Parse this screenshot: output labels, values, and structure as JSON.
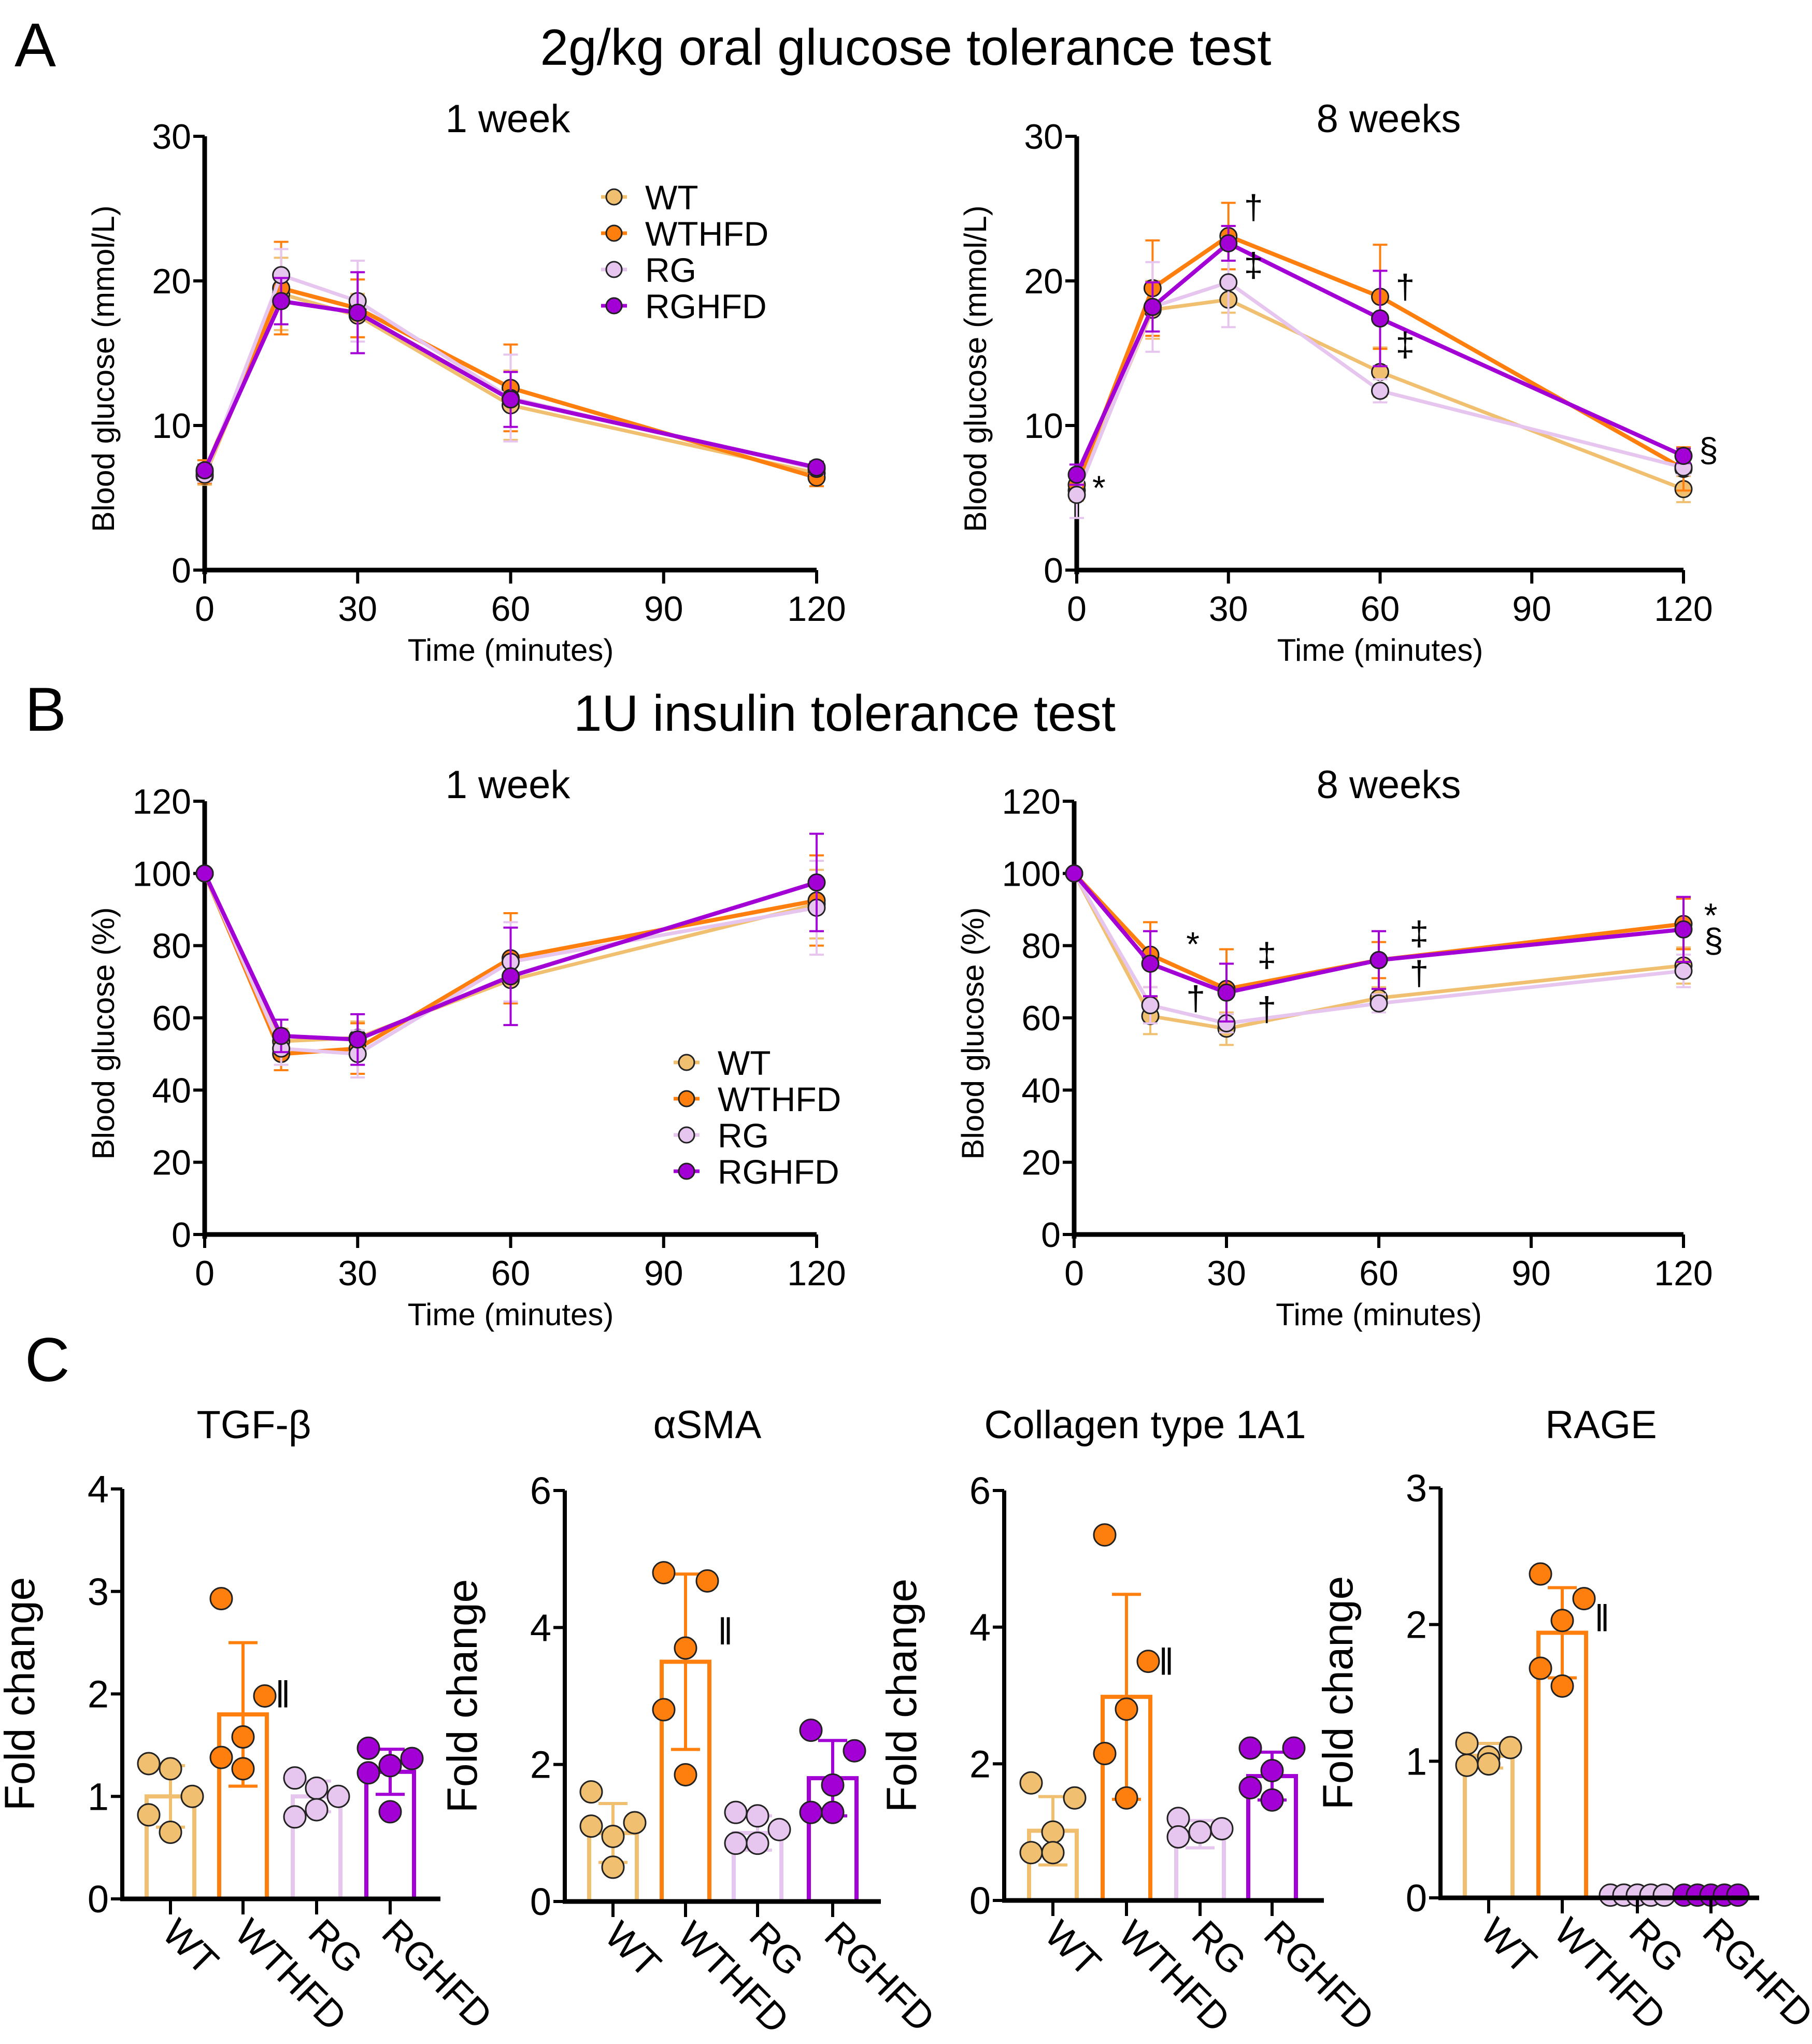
{
  "colors": {
    "WT": "#F0C070",
    "WTHFD": "#FF7F0E",
    "RG": "#E6C6EE",
    "RGHFD": "#A300D6"
  },
  "panel_labels": {
    "A": "A",
    "B": "B",
    "C": "C"
  },
  "section_titles": {
    "A": "2g/kg oral glucose tolerance test",
    "B": "1U insulin tolerance test"
  },
  "chart_data": [
    {
      "id": "A1",
      "type": "line",
      "title": "1 week",
      "xlabel": "Time (minutes)",
      "ylabel": "Blood glucose (mmol/L)",
      "xlim": [
        0,
        120
      ],
      "ylim": [
        0,
        30
      ],
      "xticks": [
        0,
        30,
        60,
        90,
        120
      ],
      "yticks": [
        0,
        10,
        20,
        30
      ],
      "x": [
        0,
        15,
        30,
        60,
        120
      ],
      "legend": [
        "WT",
        "WTHFD",
        "RG",
        "RGHFD"
      ],
      "legend_position": "top-right",
      "series": [
        {
          "name": "WT",
          "values": [
            6.5,
            19.1,
            17.6,
            11.4,
            6.7
          ],
          "err": [
            0.6,
            2.5,
            1.5,
            2.4,
            0.5
          ]
        },
        {
          "name": "WTHFD",
          "values": [
            6.8,
            19.5,
            18.1,
            12.6,
            6.4
          ],
          "err": [
            0.8,
            3.2,
            2.0,
            3.0,
            0.6
          ]
        },
        {
          "name": "RG",
          "values": [
            6.6,
            20.4,
            18.6,
            11.9,
            7.0
          ],
          "err": [
            0.5,
            1.8,
            2.8,
            3.0,
            0.4
          ]
        },
        {
          "name": "RGHFD",
          "values": [
            6.9,
            18.6,
            17.8,
            11.8,
            7.1
          ],
          "err": [
            0.4,
            1.6,
            2.8,
            1.9,
            0.4
          ]
        }
      ],
      "annotations": []
    },
    {
      "id": "A2",
      "type": "line",
      "title": "8 weeks",
      "xlabel": "Time (minutes)",
      "ylabel": "Blood glucose (mmol/L)",
      "xlim": [
        0,
        120
      ],
      "ylim": [
        0,
        30
      ],
      "xticks": [
        0,
        30,
        60,
        90,
        120
      ],
      "yticks": [
        0,
        10,
        20,
        30
      ],
      "x": [
        0,
        15,
        30,
        60,
        120
      ],
      "series": [
        {
          "name": "WT",
          "values": [
            5.5,
            18.0,
            18.7,
            13.7,
            5.6
          ],
          "err": [
            0.7,
            2.0,
            0.9,
            1.7,
            0.9
          ]
        },
        {
          "name": "WTHFD",
          "values": [
            5.9,
            19.5,
            23.1,
            18.9,
            7.0
          ],
          "err": [
            0.6,
            3.3,
            2.3,
            3.6,
            1.5
          ]
        },
        {
          "name": "RG",
          "values": [
            5.2,
            18.2,
            19.9,
            12.4,
            7.1
          ],
          "err": [
            1.6,
            3.1,
            3.1,
            0.8,
            0.5
          ]
        },
        {
          "name": "RGHFD",
          "values": [
            6.6,
            18.2,
            22.6,
            17.4,
            7.9
          ],
          "err": [
            0.7,
            1.7,
            1.2,
            3.3,
            0.5
          ]
        }
      ],
      "annotations": [
        {
          "text": "*",
          "x": 0,
          "y": 5.6
        },
        {
          "text": "†",
          "x": 30,
          "y": 25.0
        },
        {
          "text": "‡",
          "x": 30,
          "y": 21.0
        },
        {
          "text": "†",
          "x": 60,
          "y": 19.5
        },
        {
          "text": "‡",
          "x": 60,
          "y": 15.5
        },
        {
          "text": "§",
          "x": 120,
          "y": 8.2
        }
      ]
    },
    {
      "id": "B1",
      "type": "line",
      "title": "1 week",
      "xlabel": "Time (minutes)",
      "ylabel": "Blood glucose (%)",
      "xlim": [
        0,
        120
      ],
      "ylim": [
        0,
        120
      ],
      "xticks": [
        0,
        30,
        60,
        90,
        120
      ],
      "yticks": [
        0,
        20,
        40,
        60,
        80,
        100,
        120
      ],
      "x": [
        0,
        15,
        30,
        60,
        120
      ],
      "legend": [
        "WT",
        "WTHFD",
        "RG",
        "RGHFD"
      ],
      "legend_position": "bottom-right",
      "series": [
        {
          "name": "WT",
          "values": [
            100,
            53.5,
            54.5,
            70.5,
            91.5
          ],
          "err": [
            0,
            3.5,
            4.5,
            6.0,
            9.5
          ]
        },
        {
          "name": "WTHFD",
          "values": [
            100,
            50.0,
            51.5,
            76.5,
            92.5
          ],
          "err": [
            0,
            4.5,
            7.0,
            12.5,
            12.5
          ]
        },
        {
          "name": "RG",
          "values": [
            100,
            51.5,
            50.0,
            75.5,
            90.5
          ],
          "err": [
            0,
            4.5,
            6.5,
            11.0,
            13.0
          ]
        },
        {
          "name": "RGHFD",
          "values": [
            100,
            55.0,
            54.0,
            71.5,
            97.5
          ],
          "err": [
            0,
            4.5,
            7.0,
            13.5,
            13.5
          ]
        }
      ],
      "annotations": []
    },
    {
      "id": "B2",
      "type": "line",
      "title": "8 weeks",
      "xlabel": "Time (minutes)",
      "ylabel": "Blood glucose (%)",
      "xlim": [
        0,
        120
      ],
      "ylim": [
        0,
        120
      ],
      "xticks": [
        0,
        30,
        60,
        90,
        120
      ],
      "yticks": [
        0,
        20,
        40,
        60,
        80,
        100,
        120
      ],
      "x": [
        0,
        15,
        30,
        60,
        120
      ],
      "series": [
        {
          "name": "WT",
          "values": [
            100,
            60.5,
            57.0,
            65.5,
            74.5
          ],
          "err": [
            0,
            5.0,
            4.5,
            3.0,
            5.0
          ]
        },
        {
          "name": "WTHFD",
          "values": [
            100,
            77.5,
            68.0,
            76.0,
            86.0
          ],
          "err": [
            0,
            9.0,
            11.0,
            5.0,
            7.0
          ]
        },
        {
          "name": "RG",
          "values": [
            100,
            63.5,
            58.5,
            64.0,
            73.0
          ],
          "err": [
            0,
            5.0,
            2.5,
            2.5,
            4.5
          ]
        },
        {
          "name": "RGHFD",
          "values": [
            100,
            75.0,
            67.0,
            76.0,
            84.5
          ],
          "err": [
            0,
            9.0,
            8.0,
            8.0,
            9.0
          ]
        }
      ],
      "annotations": [
        {
          "text": "*",
          "x": 19,
          "y": 80
        },
        {
          "text": "†",
          "x": 19,
          "y": 65
        },
        {
          "text": "‡",
          "x": 33,
          "y": 77
        },
        {
          "text": "†",
          "x": 33,
          "y": 62
        },
        {
          "text": "‡",
          "x": 63,
          "y": 83
        },
        {
          "text": "†",
          "x": 63,
          "y": 72
        },
        {
          "text": "*",
          "x": 121,
          "y": 88
        },
        {
          "text": "§",
          "x": 121,
          "y": 81
        }
      ]
    },
    {
      "id": "C1",
      "type": "bar",
      "title": "TGF-β",
      "ylabel": "Fold change",
      "ylim": [
        0,
        4
      ],
      "yticks": [
        0,
        1,
        2,
        3,
        4
      ],
      "categories": [
        "WT",
        "WTHFD",
        "RG",
        "RGHFD"
      ],
      "values": [
        1.0,
        1.8,
        1.0,
        1.24
      ],
      "err": [
        0.3,
        0.7,
        0.15,
        0.22
      ],
      "points": [
        [
          1.32,
          1.0,
          1.27,
          0.82,
          0.65
        ],
        [
          2.93,
          1.98,
          1.58,
          1.38,
          1.27
        ],
        [
          1.18,
          1.0,
          1.08,
          0.8,
          0.87
        ],
        [
          1.47,
          1.37,
          1.3,
          1.23,
          0.85
        ]
      ],
      "annotations": [
        {
          "text": "‖",
          "category": "WTHFD",
          "y": 2.0
        }
      ]
    },
    {
      "id": "C2",
      "type": "bar",
      "title": "αSMA",
      "ylabel": "Fold change",
      "ylim": [
        0,
        6
      ],
      "yticks": [
        0,
        2,
        4,
        6
      ],
      "categories": [
        "WT",
        "WTHFD",
        "RG",
        "RGHFD"
      ],
      "values": [
        1.0,
        3.5,
        1.0,
        1.8
      ],
      "err": [
        0.43,
        1.28,
        0.25,
        0.55
      ],
      "points": [
        [
          1.6,
          1.15,
          0.95,
          1.1,
          0.5
        ],
        [
          4.8,
          4.68,
          3.7,
          2.8,
          1.85
        ],
        [
          1.3,
          1.05,
          1.25,
          0.85,
          0.85
        ],
        [
          2.5,
          2.2,
          1.7,
          1.3,
          1.3
        ]
      ],
      "annotations": [
        {
          "text": "‖",
          "category": "WTHFD",
          "y": 3.95
        }
      ]
    },
    {
      "id": "C3",
      "type": "bar",
      "title": "Collagen type 1A1",
      "ylabel": "Fold change",
      "ylim": [
        0,
        6
      ],
      "yticks": [
        0,
        2,
        4,
        6
      ],
      "categories": [
        "WT",
        "WTHFD",
        "RG",
        "RGHFD"
      ],
      "values": [
        1.02,
        2.98,
        0.97,
        1.82
      ],
      "err": [
        0.5,
        1.5,
        0.2,
        0.35
      ],
      "points": [
        [
          1.72,
          1.5,
          1.0,
          0.7,
          0.7
        ],
        [
          5.35,
          3.5,
          2.8,
          2.15,
          1.5
        ],
        [
          1.2,
          1.05,
          1.0,
          0.93,
          1.0
        ],
        [
          2.23,
          2.23,
          1.9,
          1.65,
          1.47
        ]
      ],
      "annotations": [
        {
          "text": "‖",
          "category": "WTHFD",
          "y": 3.5
        }
      ]
    },
    {
      "id": "C4",
      "type": "bar",
      "title": "RAGE",
      "ylabel": "Fold change",
      "ylim": [
        0,
        3
      ],
      "yticks": [
        0,
        1,
        2,
        3
      ],
      "categories": [
        "WT",
        "WTHFD",
        "RG",
        "RGHFD"
      ],
      "values": [
        1.04,
        1.94,
        0.0,
        0.0
      ],
      "err": [
        0.09,
        0.33,
        0.0,
        0.0
      ],
      "points": [
        [
          1.13,
          1.1,
          1.03,
          0.97,
          0.98
        ],
        [
          2.37,
          2.19,
          2.03,
          1.68,
          1.55
        ],
        [
          0.02,
          0.02,
          0.02,
          0.02,
          0.02
        ],
        [
          0.02,
          0.02,
          0.02,
          0.02,
          0.02
        ]
      ],
      "annotations": [
        {
          "text": "‖",
          "category": "WTHFD",
          "y": 2.05
        }
      ]
    }
  ]
}
